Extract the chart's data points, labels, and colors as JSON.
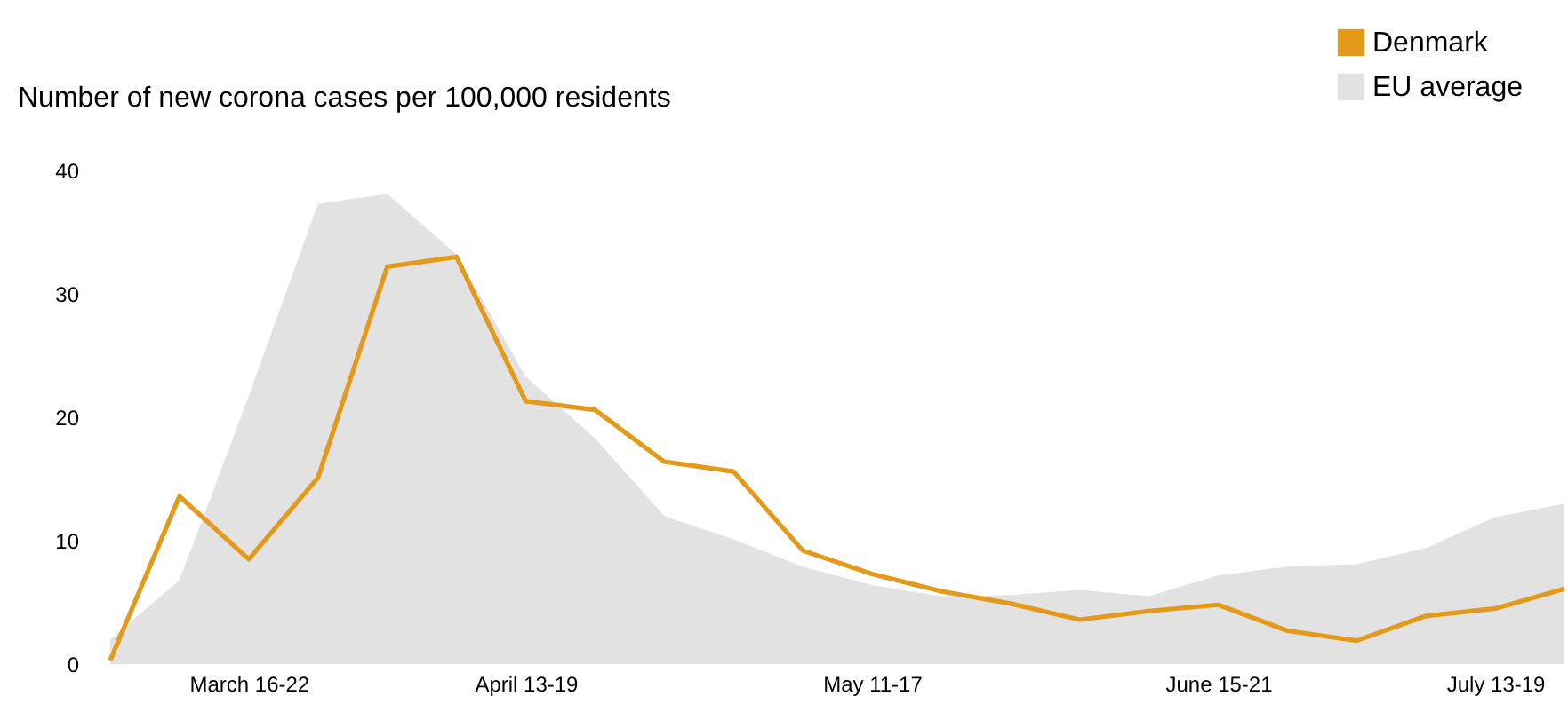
{
  "chart_data": {
    "type": "line",
    "title": "Number of new corona cases per 100,000 residents",
    "categories": [
      null,
      null,
      "March 16-22",
      null,
      null,
      null,
      "April 13-19",
      null,
      null,
      null,
      null,
      "May 11-17",
      null,
      null,
      null,
      null,
      "June 15-21",
      null,
      null,
      null,
      "July 13-19",
      null
    ],
    "series": [
      {
        "name": "EU average",
        "type": "area",
        "color": "#e2e2e2",
        "values": [
          2.0,
          6.8,
          21.7,
          37.3,
          38.1,
          33.2,
          23.3,
          18.3,
          12.0,
          10.1,
          7.9,
          6.4,
          5.5,
          5.6,
          6.0,
          5.5,
          7.2,
          7.9,
          8.1,
          9.4,
          11.9,
          13.0
        ]
      },
      {
        "name": "Denmark",
        "color": "#e39a1b",
        "values": [
          0.3,
          13.6,
          8.5,
          15.1,
          32.2,
          33.0,
          21.3,
          20.6,
          16.4,
          15.6,
          9.2,
          7.3,
          5.9,
          4.9,
          3.6,
          4.3,
          4.8,
          2.7,
          1.9,
          3.9,
          4.5,
          6.1
        ]
      }
    ],
    "ylim": [
      0,
      40
    ],
    "yticks": [
      0,
      10,
      20,
      30,
      40
    ],
    "grid": false,
    "legend": "top right",
    "line_style": "solid",
    "marker": "none"
  }
}
